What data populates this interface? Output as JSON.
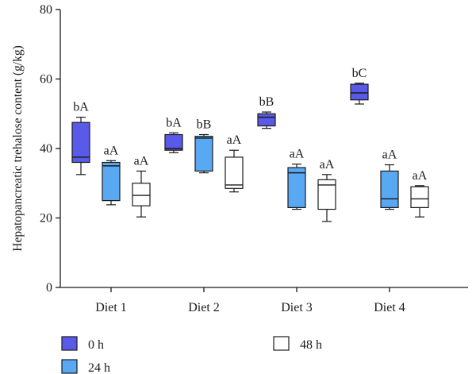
{
  "chart_data": {
    "type": "box",
    "title": "",
    "xlabel": "",
    "ylabel": "Hepatopancreatic trehalose content (g/kg)",
    "ylim": [
      0,
      80
    ],
    "yticks": [
      0,
      20,
      40,
      60,
      80
    ],
    "categories": [
      "Diet 1",
      "Diet 2",
      "Diet 3",
      "Diet 4"
    ],
    "grid": false,
    "legend_position": "bottom",
    "series": [
      {
        "name": "0 h",
        "color": "#5A5AE8",
        "boxes": [
          {
            "min": 32.5,
            "q1": 36.0,
            "median": 37.5,
            "q3": 47.5,
            "max": 49.0,
            "label": "bA"
          },
          {
            "min": 38.8,
            "q1": 39.5,
            "median": 40.0,
            "q3": 44.0,
            "max": 44.5,
            "label": "bA"
          },
          {
            "min": 45.8,
            "q1": 46.5,
            "median": 49.0,
            "q3": 50.0,
            "max": 50.5,
            "label": "bB"
          },
          {
            "min": 52.8,
            "q1": 54.0,
            "median": 56.0,
            "q3": 58.5,
            "max": 58.8,
            "label": "bC"
          }
        ]
      },
      {
        "name": "24 h",
        "color": "#59A9F2",
        "boxes": [
          {
            "min": 23.8,
            "q1": 25.0,
            "median": 35.0,
            "q3": 36.0,
            "max": 36.5,
            "label": "aA"
          },
          {
            "min": 33.0,
            "q1": 33.5,
            "median": 43.0,
            "q3": 43.5,
            "max": 44.0,
            "label": "bB"
          },
          {
            "min": 22.5,
            "q1": 23.0,
            "median": 33.0,
            "q3": 34.5,
            "max": 35.5,
            "label": "aA"
          },
          {
            "min": 22.5,
            "q1": 23.0,
            "median": 25.5,
            "q3": 33.5,
            "max": 35.3,
            "label": "aA"
          }
        ]
      },
      {
        "name": "48 h",
        "color": "#FFFFFF",
        "boxes": [
          {
            "min": 20.3,
            "q1": 23.5,
            "median": 26.5,
            "q3": 30.0,
            "max": 33.5,
            "label": "aA"
          },
          {
            "min": 27.5,
            "q1": 28.5,
            "median": 29.5,
            "q3": 37.5,
            "max": 39.5,
            "label": "aA"
          },
          {
            "min": 19.0,
            "q1": 22.5,
            "median": 29.5,
            "q3": 31.0,
            "max": 32.5,
            "label": "aA"
          },
          {
            "min": 20.3,
            "q1": 23.0,
            "median": 25.5,
            "q3": 29.0,
            "max": 29.3,
            "label": "aA"
          }
        ]
      }
    ]
  }
}
